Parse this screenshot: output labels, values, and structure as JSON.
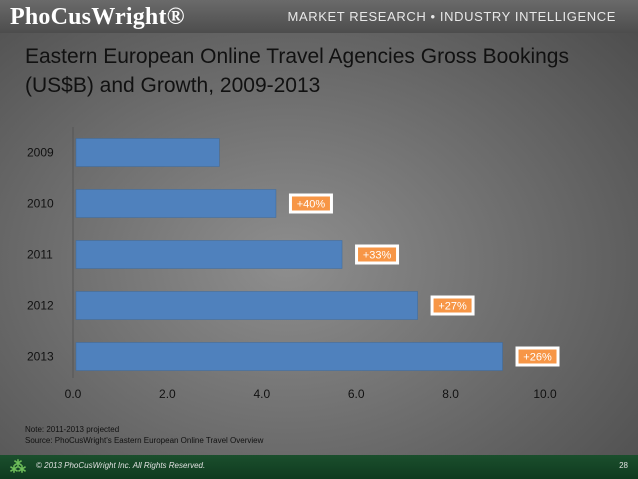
{
  "header": {
    "logo": "PhoCusWright®",
    "tagline": "MARKET RESEARCH • INDUSTRY INTELLIGENCE"
  },
  "title_lines": [
    "Eastern European Online Travel Agencies Gross Bookings",
    "(US$B) and Growth, 2009-2013"
  ],
  "chart_data": {
    "type": "bar",
    "orientation": "horizontal",
    "categories": [
      "2009",
      "2010",
      "2011",
      "2012",
      "2013"
    ],
    "values": [
      3.1,
      4.3,
      5.7,
      7.3,
      9.1
    ],
    "growth_labels": [
      "",
      "+40%",
      "+33%",
      "+27%",
      "+26%"
    ],
    "x_ticks": [
      "0.0",
      "2.0",
      "4.0",
      "6.0",
      "8.0",
      "10.0"
    ],
    "xlim": [
      0,
      10
    ],
    "bar_color": "#4f81bd",
    "label_color": "#f79646",
    "grid": false
  },
  "notes": {
    "note": "Note: 2011-2013 projected",
    "source": "Source: PhoCusWright's Eastern European Online Travel Overview"
  },
  "footer": {
    "copyright": "© 2013 PhoCusWright Inc.  All Rights Reserved.",
    "page": "28"
  }
}
